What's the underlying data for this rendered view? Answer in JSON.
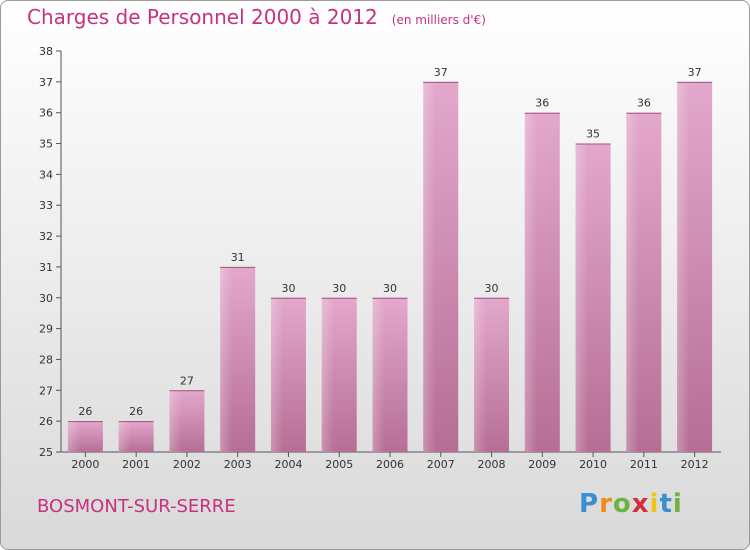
{
  "title": "Charges de Personnel 2000 à 2012",
  "unit": "(en milliers d'€)",
  "place": "BOSMONT-SUR-SERRE",
  "logo": {
    "letters": [
      "P",
      "r",
      "o",
      "x",
      "i",
      "t",
      "i"
    ],
    "colors": [
      "#3a8fd0",
      "#f08a1c",
      "#6cb33f",
      "#d62d3a",
      "#f0c419",
      "#3a8fd0",
      "#6cb33f"
    ]
  },
  "chart_data": {
    "type": "bar",
    "categories": [
      "2000",
      "2001",
      "2002",
      "2003",
      "2004",
      "2005",
      "2006",
      "2007",
      "2008",
      "2009",
      "2010",
      "2011",
      "2012"
    ],
    "values": [
      26,
      26,
      27,
      31,
      30,
      30,
      30,
      37,
      30,
      36,
      35,
      36,
      37
    ],
    "data_labels": [
      "26",
      "26",
      "27",
      "31",
      "30",
      "30",
      "30",
      "37",
      "30",
      "36",
      "35",
      "36",
      "37"
    ],
    "ylim": [
      25,
      38
    ],
    "yticks": [
      "25",
      "26",
      "27",
      "28",
      "29",
      "30",
      "31",
      "32",
      "33",
      "34",
      "35",
      "36",
      "37",
      "38"
    ],
    "grid": false,
    "bar_color": "#c9669b"
  }
}
